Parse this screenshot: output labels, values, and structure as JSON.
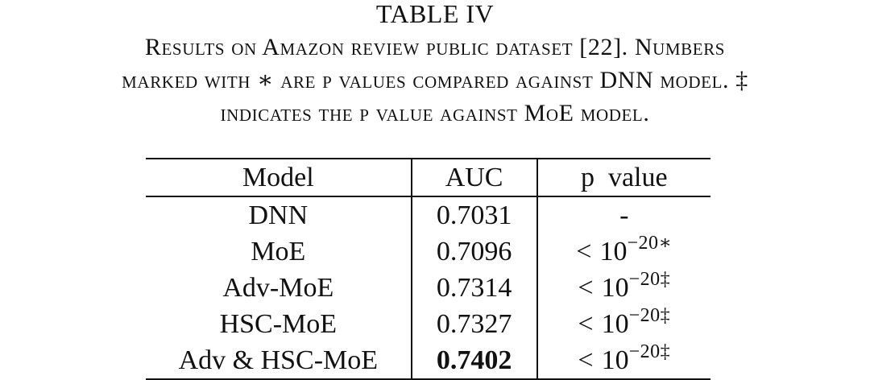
{
  "table_number": "TABLE IV",
  "caption_lines": [
    "Results on Amazon review public dataset [22]. Numbers",
    "marked with ∗ are p values compared against DNN model. ‡",
    "indicates the p value against MoE model."
  ],
  "headers": {
    "model": "Model",
    "auc": "AUC",
    "p_value": "p  value"
  },
  "rows": [
    {
      "model": "DNN",
      "auc": "0.7031",
      "p_lt": "",
      "p_base": "-",
      "p_exp": ""
    },
    {
      "model": "MoE",
      "auc": "0.7096",
      "p_lt": "<",
      "p_base": "10",
      "p_exp": "−20∗"
    },
    {
      "model": "Adv-MoE",
      "auc": "0.7314",
      "p_lt": "<",
      "p_base": "10",
      "p_exp": "−20‡"
    },
    {
      "model": "HSC-MoE",
      "auc": "0.7327",
      "p_lt": "<",
      "p_base": "10",
      "p_exp": "−20‡"
    },
    {
      "model": "Adv & HSC-MoE",
      "auc": "0.7402",
      "p_lt": "<",
      "p_base": "10",
      "p_exp": "−20‡"
    }
  ]
}
